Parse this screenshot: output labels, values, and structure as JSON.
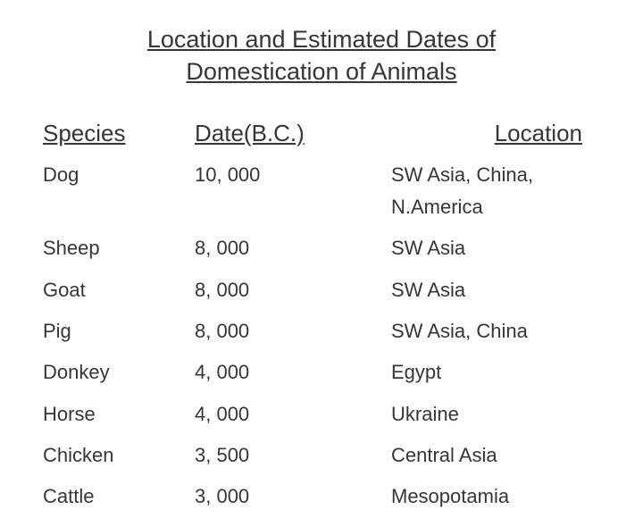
{
  "title_line1": "Location and Estimated Dates of",
  "title_line2": "Domestication of Animals",
  "headers": {
    "species": "Species",
    "date": "Date(B.C.)",
    "location": "Location"
  },
  "rows": [
    {
      "species": "Dog",
      "date": "10, 000",
      "location": "SW Asia, China, N.America"
    },
    {
      "species": "Sheep",
      "date": "8, 000",
      "location": "SW Asia"
    },
    {
      "species": "Goat",
      "date": "8, 000",
      "location": "SW Asia"
    },
    {
      "species": "Pig",
      "date": "8, 000",
      "location": "SW Asia, China"
    },
    {
      "species": "Donkey",
      "date": "4, 000",
      "location": "Egypt"
    },
    {
      "species": "Horse",
      "date": "4, 000",
      "location": "Ukraine"
    },
    {
      "species": "Chicken",
      "date": "3, 500",
      "location": "Central Asia"
    },
    {
      "species": "Cattle",
      "date": "3, 000",
      "location": "Mesopotamia"
    }
  ],
  "colors": {
    "background": "#ffffff",
    "text": "#3a3432"
  },
  "typography": {
    "title_fontsize": 27,
    "header_fontsize": 26,
    "body_fontsize": 22,
    "font_family": "Comic Sans MS"
  }
}
